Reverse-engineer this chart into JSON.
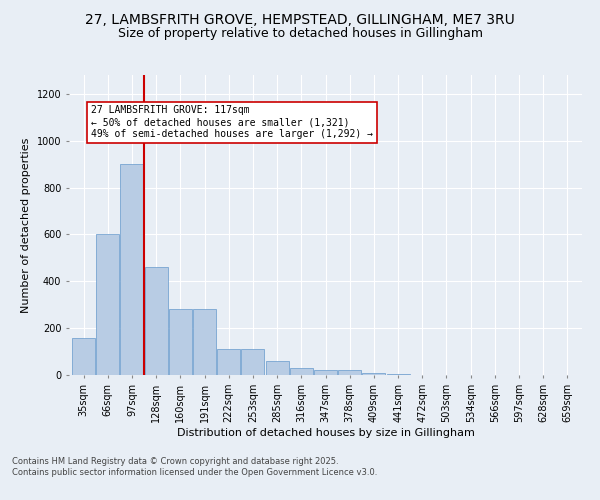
{
  "title_line1": "27, LAMBSFRITH GROVE, HEMPSTEAD, GILLINGHAM, ME7 3RU",
  "title_line2": "Size of property relative to detached houses in Gillingham",
  "xlabel": "Distribution of detached houses by size in Gillingham",
  "ylabel": "Number of detached properties",
  "categories": [
    "35sqm",
    "66sqm",
    "97sqm",
    "128sqm",
    "160sqm",
    "191sqm",
    "222sqm",
    "253sqm",
    "285sqm",
    "316sqm",
    "347sqm",
    "378sqm",
    "409sqm",
    "441sqm",
    "472sqm",
    "503sqm",
    "534sqm",
    "566sqm",
    "597sqm",
    "628sqm",
    "659sqm"
  ],
  "values": [
    160,
    600,
    900,
    460,
    280,
    280,
    110,
    110,
    60,
    30,
    20,
    20,
    10,
    5,
    2,
    1,
    1,
    0,
    0,
    0,
    0
  ],
  "bar_color": "#b8cce4",
  "bar_edge_color": "#6699cc",
  "vline_x": 2.5,
  "vline_color": "#cc0000",
  "annotation_text": "27 LAMBSFRITH GROVE: 117sqm\n← 50% of detached houses are smaller (1,321)\n49% of semi-detached houses are larger (1,292) →",
  "annotation_box_color": "#ffffff",
  "annotation_box_edge": "#cc0000",
  "ylim": [
    0,
    1280
  ],
  "yticks": [
    0,
    200,
    400,
    600,
    800,
    1000,
    1200
  ],
  "bg_color": "#e8eef5",
  "plot_bg_color": "#e8eef5",
  "footer_text": "Contains HM Land Registry data © Crown copyright and database right 2025.\nContains public sector information licensed under the Open Government Licence v3.0.",
  "title_fontsize": 10,
  "subtitle_fontsize": 9,
  "tick_fontsize": 7,
  "label_fontsize": 8,
  "annotation_fontsize": 7,
  "footer_fontsize": 6
}
